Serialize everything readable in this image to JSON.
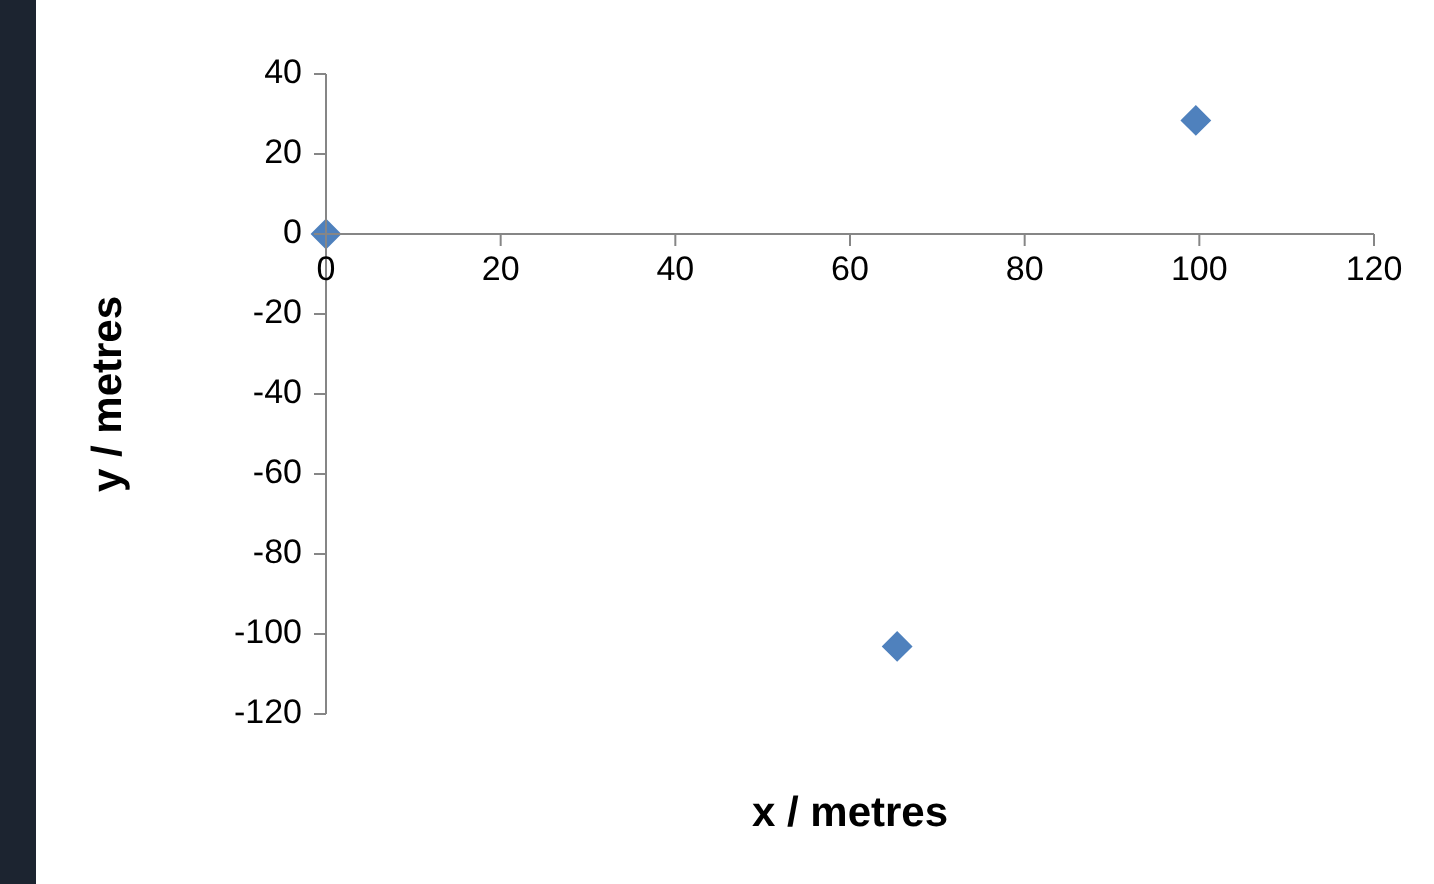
{
  "chart_data": {
    "type": "scatter",
    "xlabel": "x / metres",
    "ylabel": "y / metres",
    "x": [
      0,
      99.6,
      65.4
    ],
    "series": [
      {
        "color": "#4f81bd",
        "values": [
          0,
          28.4,
          -103.1
        ]
      }
    ],
    "xlim": [
      0,
      120
    ],
    "xticks": [
      0,
      20,
      40,
      60,
      80,
      100,
      120
    ],
    "ylim": [
      -120,
      40
    ],
    "yticks": [
      -120,
      -100,
      -80,
      -60,
      -40,
      -20,
      0,
      20,
      40
    ],
    "marker": "diamond",
    "grid": false,
    "legend": false
  }
}
